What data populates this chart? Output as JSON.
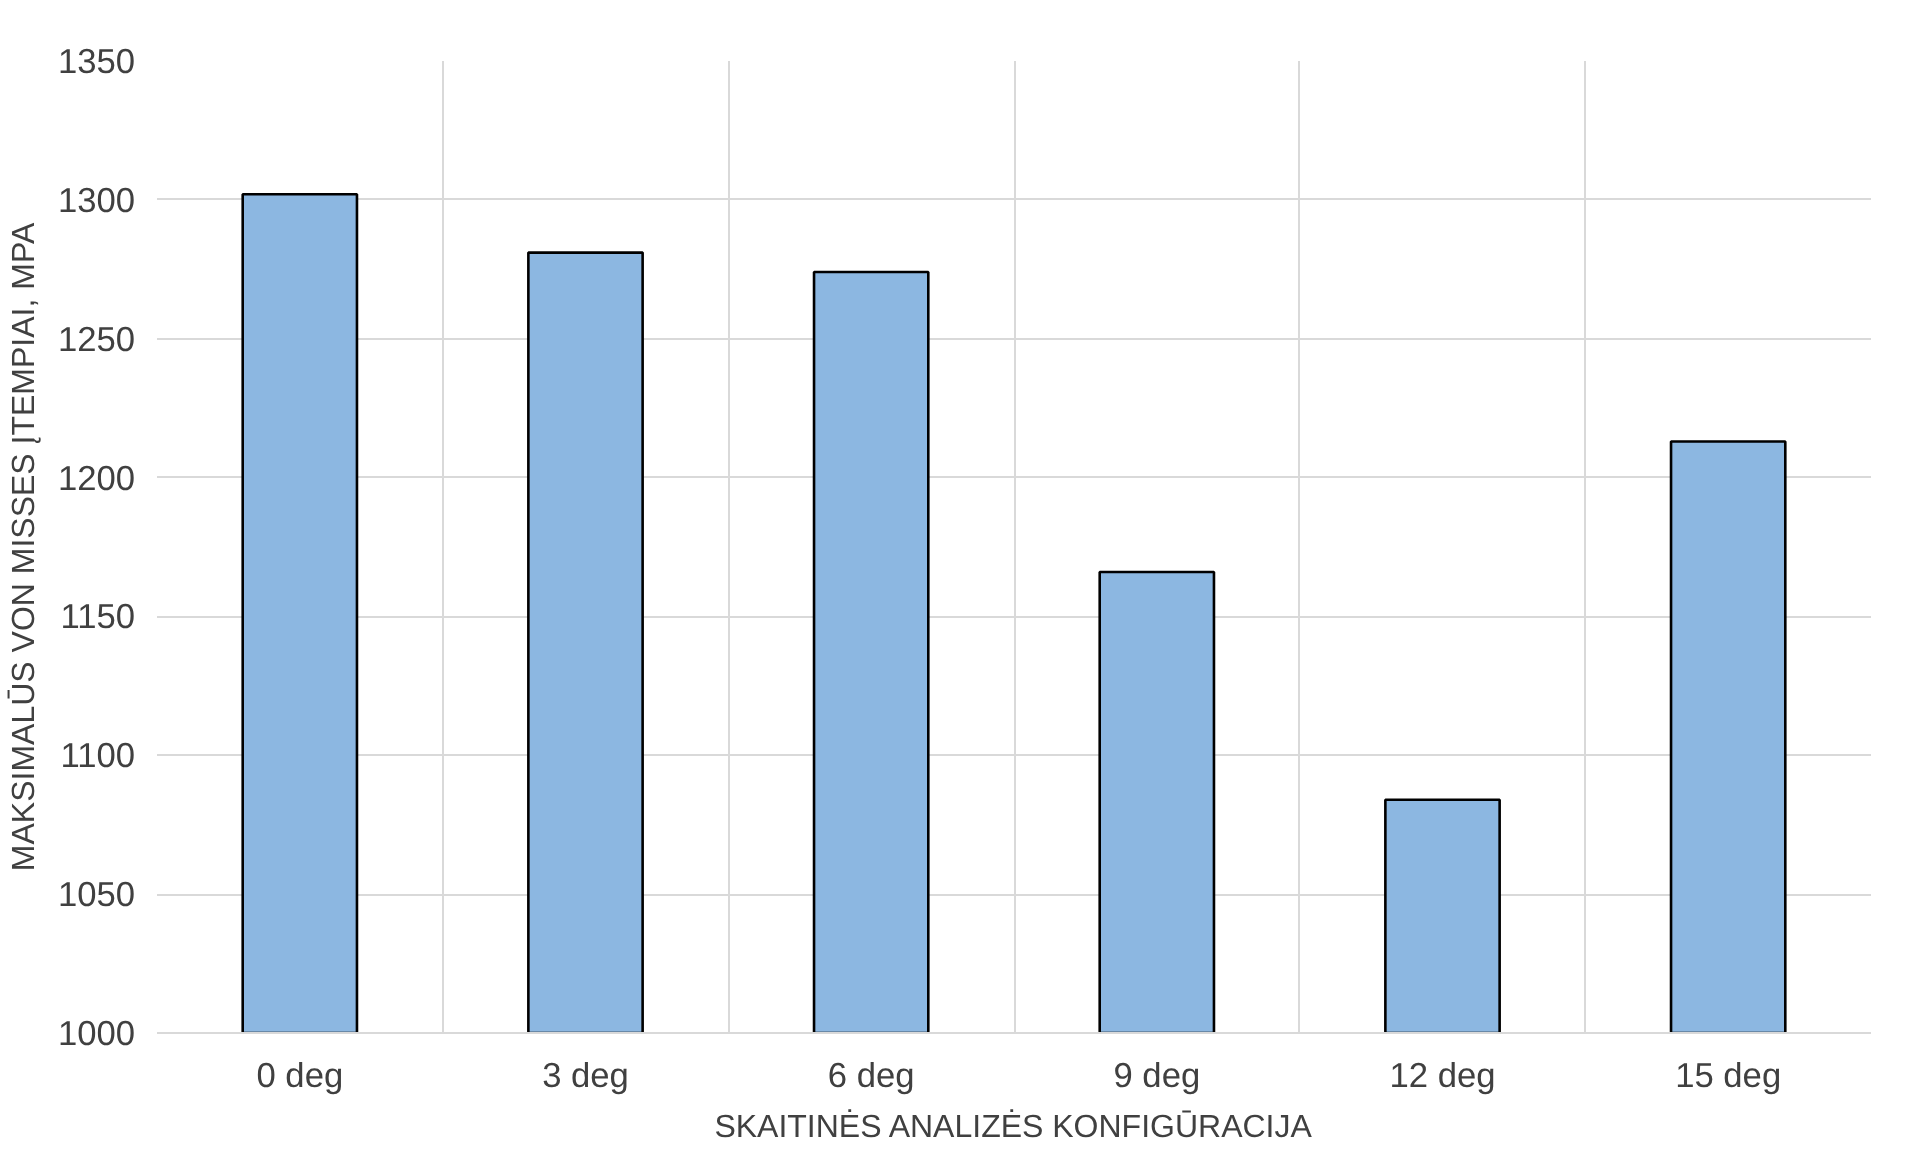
{
  "chart_data": {
    "type": "bar",
    "xlabel": "SKAITINĖS ANALIZĖS KONFIGŪRACIJA",
    "ylabel": "MAKSIMALŪS VON MISSES ĮTEMPIAI, MPA",
    "categories": [
      "0 deg",
      "3 deg",
      "6 deg",
      "9 deg",
      "12 deg",
      "15 deg"
    ],
    "values": [
      1302,
      1281,
      1274,
      1166,
      1084,
      1213
    ],
    "color": "#8cb7e1",
    "ylim": [
      1000,
      1350
    ],
    "yticks": [
      1000,
      1050,
      1100,
      1150,
      1200,
      1250,
      1300,
      1350
    ],
    "grid": true
  }
}
